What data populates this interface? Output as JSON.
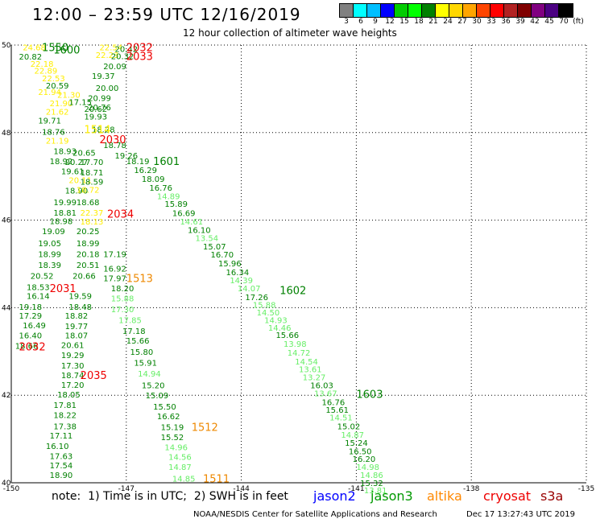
{
  "header": {
    "title": "12:00 – 23:59 UTC 12/16/2019",
    "subtitle": "12 hour collection of altimeter wave heights"
  },
  "colorbar": {
    "colors": [
      "#808080",
      "#00ffff",
      "#00bfff",
      "#0000ff",
      "#00cc00",
      "#00ff00",
      "#008000",
      "#ffff00",
      "#ffd700",
      "#ffa500",
      "#ff4500",
      "#ff0000",
      "#b22222",
      "#800000",
      "#800080",
      "#4b0082",
      "#000000"
    ],
    "labels": [
      "3",
      "6",
      "9",
      "12",
      "15",
      "18",
      "21",
      "24",
      "27",
      "30",
      "33",
      "36",
      "39",
      "42",
      "45",
      "70",
      "(ft)"
    ]
  },
  "map": {
    "lon_ticks": [
      "-150",
      "-147",
      "-144",
      "-141",
      "-138",
      "-135"
    ],
    "lat_ticks": [
      "50",
      "48",
      "46",
      "44",
      "42",
      "40"
    ],
    "colors": {
      "dark_green": "#008000",
      "mid_green": "#00cc00",
      "light_green": "#66ee66",
      "yellow": "#ffee00",
      "red": "#ee0000",
      "orange": "#ee8800"
    },
    "observations": [
      {
        "v": "20.82",
        "c": "dark_green",
        "lon": -149.8,
        "lat": 49.74
      },
      {
        "v": "24.68",
        "c": "yellow",
        "lon": -149.7,
        "lat": 49.95
      },
      {
        "v": "22.18",
        "c": "yellow",
        "lon": -149.5,
        "lat": 49.58
      },
      {
        "v": "22.89",
        "c": "yellow",
        "lon": -149.4,
        "lat": 49.42
      },
      {
        "v": "22.53",
        "c": "yellow",
        "lon": -149.2,
        "lat": 49.25
      },
      {
        "v": "20.59",
        "c": "dark_green",
        "lon": -149.1,
        "lat": 49.08
      },
      {
        "v": "21.94",
        "c": "yellow",
        "lon": -149.3,
        "lat": 48.93
      },
      {
        "v": "21.30",
        "c": "yellow",
        "lon": -148.8,
        "lat": 48.87
      },
      {
        "v": "21.90",
        "c": "yellow",
        "lon": -149.0,
        "lat": 48.68
      },
      {
        "v": "17.15",
        "c": "dark_green",
        "lon": -148.5,
        "lat": 48.7
      },
      {
        "v": "20.62",
        "c": "dark_green",
        "lon": -148.1,
        "lat": 48.55
      },
      {
        "v": "21.62",
        "c": "yellow",
        "lon": -149.1,
        "lat": 48.48
      },
      {
        "v": "19.71",
        "c": "dark_green",
        "lon": -149.3,
        "lat": 48.28
      },
      {
        "v": "18.76",
        "c": "dark_green",
        "lon": -149.2,
        "lat": 48.02
      },
      {
        "v": "21.19",
        "c": "yellow",
        "lon": -149.1,
        "lat": 47.82
      },
      {
        "v": "18.93",
        "c": "dark_green",
        "lon": -148.9,
        "lat": 47.58
      },
      {
        "v": "20.65",
        "c": "dark_green",
        "lon": -148.4,
        "lat": 47.55
      },
      {
        "v": "18.92",
        "c": "dark_green",
        "lon": -149.0,
        "lat": 47.35
      },
      {
        "v": "20.27",
        "c": "dark_green",
        "lon": -148.6,
        "lat": 47.33
      },
      {
        "v": "17.70",
        "c": "dark_green",
        "lon": -148.2,
        "lat": 47.33
      },
      {
        "v": "19.61",
        "c": "dark_green",
        "lon": -148.7,
        "lat": 47.12
      },
      {
        "v": "18.71",
        "c": "dark_green",
        "lon": -148.2,
        "lat": 47.1
      },
      {
        "v": "20.11",
        "c": "yellow",
        "lon": -148.5,
        "lat": 46.92
      },
      {
        "v": "18.59",
        "c": "dark_green",
        "lon": -148.2,
        "lat": 46.88
      },
      {
        "v": "18.90",
        "c": "dark_green",
        "lon": -148.6,
        "lat": 46.68
      },
      {
        "v": "18.72",
        "c": "yellow",
        "lon": -148.3,
        "lat": 46.7
      },
      {
        "v": "19.99",
        "c": "dark_green",
        "lon": -148.9,
        "lat": 46.42
      },
      {
        "v": "18.68",
        "c": "dark_green",
        "lon": -148.3,
        "lat": 46.42
      },
      {
        "v": "18.81",
        "c": "dark_green",
        "lon": -148.9,
        "lat": 46.18
      },
      {
        "v": "22.37",
        "c": "yellow",
        "lon": -148.2,
        "lat": 46.18
      },
      {
        "v": "18.98",
        "c": "dark_green",
        "lon": -149.0,
        "lat": 45.98
      },
      {
        "v": "18.13",
        "c": "yellow",
        "lon": -148.2,
        "lat": 45.97
      },
      {
        "v": "19.09",
        "c": "dark_green",
        "lon": -149.2,
        "lat": 45.75
      },
      {
        "v": "20.25",
        "c": "dark_green",
        "lon": -148.3,
        "lat": 45.75
      },
      {
        "v": "19.05",
        "c": "dark_green",
        "lon": -149.3,
        "lat": 45.48
      },
      {
        "v": "18.99",
        "c": "dark_green",
        "lon": -148.3,
        "lat": 45.48
      },
      {
        "v": "18.99",
        "c": "dark_green",
        "lon": -149.3,
        "lat": 45.23
      },
      {
        "v": "20.18",
        "c": "dark_green",
        "lon": -148.3,
        "lat": 45.23
      },
      {
        "v": "17.19",
        "c": "dark_green",
        "lon": -147.6,
        "lat": 45.23
      },
      {
        "v": "18.39",
        "c": "dark_green",
        "lon": -149.3,
        "lat": 44.98
      },
      {
        "v": "20.51",
        "c": "dark_green",
        "lon": -148.3,
        "lat": 44.98
      },
      {
        "v": "16.92",
        "c": "dark_green",
        "lon": -147.6,
        "lat": 44.9
      },
      {
        "v": "20.52",
        "c": "dark_green",
        "lon": -149.5,
        "lat": 44.73
      },
      {
        "v": "20.66",
        "c": "dark_green",
        "lon": -148.4,
        "lat": 44.73
      },
      {
        "v": "17.97",
        "c": "dark_green",
        "lon": -147.6,
        "lat": 44.68
      },
      {
        "v": "18.53",
        "c": "dark_green",
        "lon": -149.6,
        "lat": 44.48
      },
      {
        "v": "18.20",
        "c": "dark_green",
        "lon": -147.4,
        "lat": 44.45
      },
      {
        "v": "16.14",
        "c": "dark_green",
        "lon": -149.6,
        "lat": 44.27
      },
      {
        "v": "19.59",
        "c": "dark_green",
        "lon": -148.5,
        "lat": 44.27
      },
      {
        "v": "15.88",
        "c": "light_green",
        "lon": -147.4,
        "lat": 44.22
      },
      {
        "v": "19.18",
        "c": "dark_green",
        "lon": -149.8,
        "lat": 44.03
      },
      {
        "v": "18.48",
        "c": "dark_green",
        "lon": -148.5,
        "lat": 44.03
      },
      {
        "v": "17.30",
        "c": "light_green",
        "lon": -147.4,
        "lat": 43.97
      },
      {
        "v": "17.29",
        "c": "dark_green",
        "lon": -149.8,
        "lat": 43.82
      },
      {
        "v": "18.82",
        "c": "dark_green",
        "lon": -148.6,
        "lat": 43.82
      },
      {
        "v": "17.85",
        "c": "light_green",
        "lon": -147.2,
        "lat": 43.72
      },
      {
        "v": "16.49",
        "c": "dark_green",
        "lon": -149.7,
        "lat": 43.6
      },
      {
        "v": "19.77",
        "c": "dark_green",
        "lon": -148.6,
        "lat": 43.58
      },
      {
        "v": "17.18",
        "c": "dark_green",
        "lon": -147.1,
        "lat": 43.47
      },
      {
        "v": "16.40",
        "c": "dark_green",
        "lon": -149.8,
        "lat": 43.37
      },
      {
        "v": "18.07",
        "c": "dark_green",
        "lon": -148.6,
        "lat": 43.37
      },
      {
        "v": "15.66",
        "c": "dark_green",
        "lon": -147.0,
        "lat": 43.25
      },
      {
        "v": "18.66",
        "c": "dark_green",
        "lon": -149.9,
        "lat": 43.13
      },
      {
        "v": "20.61",
        "c": "dark_green",
        "lon": -148.7,
        "lat": 43.15
      },
      {
        "v": "19.29",
        "c": "dark_green",
        "lon": -148.7,
        "lat": 42.92
      },
      {
        "v": "15.80",
        "c": "dark_green",
        "lon": -146.9,
        "lat": 43.0
      },
      {
        "v": "17.30",
        "c": "dark_green",
        "lon": -148.7,
        "lat": 42.68
      },
      {
        "v": "15.91",
        "c": "dark_green",
        "lon": -146.8,
        "lat": 42.75
      },
      {
        "v": "18.74",
        "c": "dark_green",
        "lon": -148.7,
        "lat": 42.46
      },
      {
        "v": "14.94",
        "c": "light_green",
        "lon": -146.7,
        "lat": 42.5
      },
      {
        "v": "17.20",
        "c": "dark_green",
        "lon": -148.7,
        "lat": 42.24
      },
      {
        "v": "15.20",
        "c": "dark_green",
        "lon": -146.6,
        "lat": 42.23
      },
      {
        "v": "18.05",
        "c": "dark_green",
        "lon": -148.8,
        "lat": 42.02
      },
      {
        "v": "15.09",
        "c": "dark_green",
        "lon": -146.5,
        "lat": 42.0
      },
      {
        "v": "17.81",
        "c": "dark_green",
        "lon": -148.9,
        "lat": 41.78
      },
      {
        "v": "15.50",
        "c": "dark_green",
        "lon": -146.3,
        "lat": 41.75
      },
      {
        "v": "18.22",
        "c": "dark_green",
        "lon": -148.9,
        "lat": 41.55
      },
      {
        "v": "16.62",
        "c": "dark_green",
        "lon": -146.2,
        "lat": 41.53
      },
      {
        "v": "17.38",
        "c": "dark_green",
        "lon": -148.9,
        "lat": 41.3
      },
      {
        "v": "15.19",
        "c": "dark_green",
        "lon": -146.1,
        "lat": 41.28
      },
      {
        "v": "17.11",
        "c": "dark_green",
        "lon": -149.0,
        "lat": 41.08
      },
      {
        "v": "15.52",
        "c": "dark_green",
        "lon": -146.1,
        "lat": 41.05
      },
      {
        "v": "16.10",
        "c": "dark_green",
        "lon": -149.1,
        "lat": 40.85
      },
      {
        "v": "14.96",
        "c": "light_green",
        "lon": -146.0,
        "lat": 40.82
      },
      {
        "v": "17.63",
        "c": "dark_green",
        "lon": -149.0,
        "lat": 40.62
      },
      {
        "v": "14.56",
        "c": "light_green",
        "lon": -145.9,
        "lat": 40.6
      },
      {
        "v": "17.54",
        "c": "dark_green",
        "lon": -149.0,
        "lat": 40.4
      },
      {
        "v": "14.87",
        "c": "light_green",
        "lon": -145.9,
        "lat": 40.37
      },
      {
        "v": "18.90",
        "c": "dark_green",
        "lon": -149.0,
        "lat": 40.18
      },
      {
        "v": "14.85",
        "c": "light_green",
        "lon": -145.8,
        "lat": 40.1
      },
      {
        "v": "22.54",
        "c": "yellow",
        "lon": -147.7,
        "lat": 49.95
      },
      {
        "v": "20.42",
        "c": "dark_green",
        "lon": -147.3,
        "lat": 49.92
      },
      {
        "v": "22.23",
        "c": "yellow",
        "lon": -147.8,
        "lat": 49.78
      },
      {
        "v": "20.32",
        "c": "dark_green",
        "lon": -147.4,
        "lat": 49.75
      },
      {
        "v": "20.09",
        "c": "dark_green",
        "lon": -147.6,
        "lat": 49.52
      },
      {
        "v": "19.37",
        "c": "dark_green",
        "lon": -147.9,
        "lat": 49.3
      },
      {
        "v": "20.00",
        "c": "dark_green",
        "lon": -147.8,
        "lat": 49.03
      },
      {
        "v": "20.99",
        "c": "dark_green",
        "lon": -148.0,
        "lat": 48.8
      },
      {
        "v": "20.76",
        "c": "dark_green",
        "lon": -148.0,
        "lat": 48.58
      },
      {
        "v": "19.93",
        "c": "dark_green",
        "lon": -148.1,
        "lat": 48.37
      },
      {
        "v": "18.28",
        "c": "dark_green",
        "lon": -147.9,
        "lat": 48.08
      },
      {
        "v": "18.78",
        "c": "dark_green",
        "lon": -147.6,
        "lat": 47.72
      },
      {
        "v": "19.26",
        "c": "dark_green",
        "lon": -147.3,
        "lat": 47.48
      },
      {
        "v": "18.19",
        "c": "dark_green",
        "lon": -147.0,
        "lat": 47.35
      },
      {
        "v": "16.29",
        "c": "dark_green",
        "lon": -146.8,
        "lat": 47.15
      },
      {
        "v": "18.09",
        "c": "dark_green",
        "lon": -146.6,
        "lat": 46.95
      },
      {
        "v": "16.76",
        "c": "dark_green",
        "lon": -146.4,
        "lat": 46.75
      },
      {
        "v": "14.89",
        "c": "light_green",
        "lon": -146.2,
        "lat": 46.55
      },
      {
        "v": "15.89",
        "c": "dark_green",
        "lon": -146.0,
        "lat": 46.38
      },
      {
        "v": "16.69",
        "c": "dark_green",
        "lon": -145.8,
        "lat": 46.17
      },
      {
        "v": "14.61",
        "c": "light_green",
        "lon": -145.6,
        "lat": 45.97
      },
      {
        "v": "16.10",
        "c": "dark_green",
        "lon": -145.4,
        "lat": 45.78
      },
      {
        "v": "13.54",
        "c": "light_green",
        "lon": -145.2,
        "lat": 45.6
      },
      {
        "v": "15.07",
        "c": "dark_green",
        "lon": -145.0,
        "lat": 45.4
      },
      {
        "v": "16.70",
        "c": "dark_green",
        "lon": -144.8,
        "lat": 45.22
      },
      {
        "v": "15.96",
        "c": "dark_green",
        "lon": -144.6,
        "lat": 45.02
      },
      {
        "v": "16.34",
        "c": "dark_green",
        "lon": -144.4,
        "lat": 44.82
      },
      {
        "v": "14.39",
        "c": "light_green",
        "lon": -144.3,
        "lat": 44.63
      },
      {
        "v": "14.07",
        "c": "light_green",
        "lon": -144.1,
        "lat": 44.45
      },
      {
        "v": "17.26",
        "c": "dark_green",
        "lon": -143.9,
        "lat": 44.25
      },
      {
        "v": "15.88",
        "c": "light_green",
        "lon": -143.7,
        "lat": 44.07
      },
      {
        "v": "14.50",
        "c": "light_green",
        "lon": -143.6,
        "lat": 43.9
      },
      {
        "v": "14.93",
        "c": "light_green",
        "lon": -143.4,
        "lat": 43.72
      },
      {
        "v": "14.46",
        "c": "light_green",
        "lon": -143.3,
        "lat": 43.55
      },
      {
        "v": "15.66",
        "c": "dark_green",
        "lon": -143.1,
        "lat": 43.38
      },
      {
        "v": "13.98",
        "c": "light_green",
        "lon": -142.9,
        "lat": 43.18
      },
      {
        "v": "14.72",
        "c": "light_green",
        "lon": -142.8,
        "lat": 42.98
      },
      {
        "v": "14.54",
        "c": "light_green",
        "lon": -142.6,
        "lat": 42.78
      },
      {
        "v": "13.61",
        "c": "light_green",
        "lon": -142.5,
        "lat": 42.6
      },
      {
        "v": "13.27",
        "c": "light_green",
        "lon": -142.4,
        "lat": 42.42
      },
      {
        "v": "16.03",
        "c": "dark_green",
        "lon": -142.2,
        "lat": 42.23
      },
      {
        "v": "13.67",
        "c": "light_green",
        "lon": -142.1,
        "lat": 42.05
      },
      {
        "v": "16.76",
        "c": "dark_green",
        "lon": -141.9,
        "lat": 41.85
      },
      {
        "v": "15.61",
        "c": "dark_green",
        "lon": -141.8,
        "lat": 41.67
      },
      {
        "v": "14.51",
        "c": "light_green",
        "lon": -141.7,
        "lat": 41.5
      },
      {
        "v": "15.02",
        "c": "dark_green",
        "lon": -141.5,
        "lat": 41.3
      },
      {
        "v": "14.87",
        "c": "light_green",
        "lon": -141.4,
        "lat": 41.1
      },
      {
        "v": "15.24",
        "c": "dark_green",
        "lon": -141.3,
        "lat": 40.92
      },
      {
        "v": "16.50",
        "c": "dark_green",
        "lon": -141.2,
        "lat": 40.73
      },
      {
        "v": "16.20",
        "c": "dark_green",
        "lon": -141.1,
        "lat": 40.55
      },
      {
        "v": "14.98",
        "c": "light_green",
        "lon": -141.0,
        "lat": 40.37
      },
      {
        "v": "14.86",
        "c": "light_green",
        "lon": -140.9,
        "lat": 40.18
      },
      {
        "v": "15.32",
        "c": "dark_green",
        "lon": -140.9,
        "lat": 40.0
      },
      {
        "v": "13.81",
        "c": "light_green",
        "lon": -140.8,
        "lat": 39.83
      }
    ],
    "time_labels": [
      {
        "t": "1550",
        "c": "dark_green",
        "lon": -149.2,
        "lat": 49.95
      },
      {
        "t": "1600",
        "c": "dark_green",
        "lon": -148.9,
        "lat": 49.9
      },
      {
        "t": "2032",
        "c": "red",
        "lon": -147.0,
        "lat": 49.95
      },
      {
        "t": "2033",
        "c": "red",
        "lon": -147.0,
        "lat": 49.75
      },
      {
        "t": "1514",
        "c": "yellow",
        "lon": -148.1,
        "lat": 48.08
      },
      {
        "t": "2030",
        "c": "red",
        "lon": -147.7,
        "lat": 47.85
      },
      {
        "t": "1601",
        "c": "dark_green",
        "lon": -146.3,
        "lat": 47.35
      },
      {
        "t": "2034",
        "c": "red",
        "lon": -147.5,
        "lat": 46.15
      },
      {
        "t": "1513",
        "c": "orange",
        "lon": -147.0,
        "lat": 44.68
      },
      {
        "t": "1602",
        "c": "dark_green",
        "lon": -143.0,
        "lat": 44.4
      },
      {
        "t": "2031",
        "c": "red",
        "lon": -149.0,
        "lat": 44.45
      },
      {
        "t": "2032",
        "c": "red",
        "lon": -149.8,
        "lat": 43.12
      },
      {
        "t": "2035",
        "c": "red",
        "lon": -148.2,
        "lat": 42.46
      },
      {
        "t": "1512",
        "c": "orange",
        "lon": -145.3,
        "lat": 41.28
      },
      {
        "t": "1603",
        "c": "dark_green",
        "lon": -141.0,
        "lat": 42.03
      },
      {
        "t": "1511",
        "c": "orange",
        "lon": -145.0,
        "lat": 40.1
      }
    ]
  },
  "footer": {
    "note": "note:  1) Time is in UTC;  2) SWH is in feet",
    "satellites": [
      {
        "name": "jason2",
        "color": "#0000ff"
      },
      {
        "name": "jason3",
        "color": "#009900"
      },
      {
        "name": "altika",
        "color": "#ff8800"
      },
      {
        "name": "cryosat",
        "color": "#ee0000"
      },
      {
        "name": "s3a",
        "color": "#990000"
      }
    ],
    "credit": "NOAA/NESDIS Center for Satellite Applications and Research",
    "timestamp": "Dec 17 13:27:43 UTC 2019"
  }
}
